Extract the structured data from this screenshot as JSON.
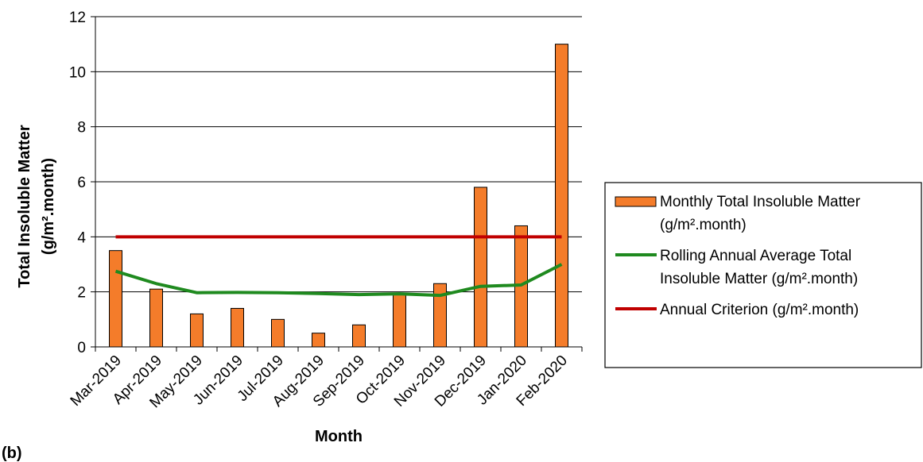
{
  "panel_label": "(b)",
  "chart_data": {
    "type": "bar",
    "categories": [
      "Mar-2019",
      "Apr-2019",
      "May-2019",
      "Jun-2019",
      "Jul-2019",
      "Aug-2019",
      "Sep-2019",
      "Oct-2019",
      "Nov-2019",
      "Dec-2019",
      "Jan-2020",
      "Feb-2020"
    ],
    "series": [
      {
        "name": "Monthly Total Insoluble Matter (g/m².month)",
        "kind": "bar",
        "color": "#f47c2a",
        "values": [
          3.5,
          2.1,
          1.2,
          1.4,
          1.0,
          0.5,
          0.8,
          1.9,
          2.3,
          5.8,
          4.4,
          11.0
        ]
      },
      {
        "name": "Rolling Annual Average Total Insoluble Matter (g/m².month)",
        "kind": "line",
        "color": "#1f8a1f",
        "values": [
          2.75,
          2.3,
          1.97,
          1.98,
          1.97,
          1.94,
          1.9,
          1.93,
          1.87,
          2.2,
          2.25,
          3.0
        ]
      },
      {
        "name": "Annual Criterion (g/m².month)",
        "kind": "line",
        "color": "#c00000",
        "values": [
          4,
          4,
          4,
          4,
          4,
          4,
          4,
          4,
          4,
          4,
          4,
          4
        ]
      }
    ],
    "xlabel": "Month",
    "ylabel_lines": [
      "Total Insoluble Matter",
      "(g/m².month)"
    ],
    "ylim": [
      0,
      12
    ],
    "yticks": [
      0,
      2,
      4,
      6,
      8,
      10,
      12
    ],
    "grid": true,
    "legend_position": "right",
    "legend": {
      "bar": [
        "Monthly Total Insoluble Matter",
        "(g/m².month)"
      ],
      "rolling": [
        "Rolling Annual Average Total",
        "Insoluble Matter (g/m².month)"
      ],
      "criterion": [
        "Annual Criterion (g/m².month)"
      ]
    }
  }
}
